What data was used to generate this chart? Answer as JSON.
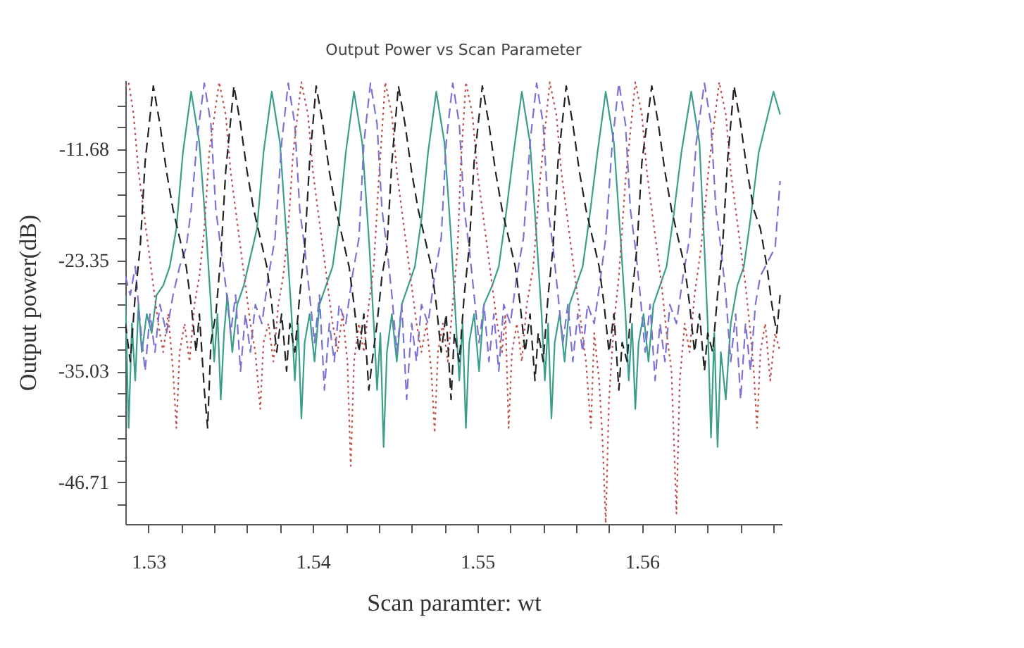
{
  "chart_data": {
    "type": "line",
    "title": "Output Power vs Scan Parameter",
    "xlabel": "Scan paramter:   wt",
    "ylabel": "Output power(dB)",
    "xlim": [
      1.5286,
      1.5685
    ],
    "ylim": [
      -51.1,
      -4.4
    ],
    "xticks": [
      {
        "value": 1.53,
        "label": "1.53"
      },
      {
        "value": 1.532,
        "label": null
      },
      {
        "value": 1.534,
        "label": null
      },
      {
        "value": 1.536,
        "label": null
      },
      {
        "value": 1.538,
        "label": null
      },
      {
        "value": 1.54,
        "label": "1.54"
      },
      {
        "value": 1.542,
        "label": null
      },
      {
        "value": 1.544,
        "label": null
      },
      {
        "value": 1.546,
        "label": null
      },
      {
        "value": 1.548,
        "label": null
      },
      {
        "value": 1.55,
        "label": "1.55"
      },
      {
        "value": 1.552,
        "label": null
      },
      {
        "value": 1.554,
        "label": null
      },
      {
        "value": 1.556,
        "label": null
      },
      {
        "value": 1.558,
        "label": null
      },
      {
        "value": 1.56,
        "label": "1.56"
      },
      {
        "value": 1.562,
        "label": null
      },
      {
        "value": 1.564,
        "label": null
      },
      {
        "value": 1.566,
        "label": null
      },
      {
        "value": 1.568,
        "label": null
      }
    ],
    "yticks": [
      {
        "value": -49.05,
        "label": null
      },
      -46.71,
      {
        "value": -44.38,
        "label": null
      },
      {
        "value": -42.04,
        "label": null
      },
      {
        "value": -39.7,
        "label": null
      },
      {
        "value": -37.37,
        "label": null
      },
      -35.03,
      {
        "value": -32.7,
        "label": null
      },
      {
        "value": -30.36,
        "label": null
      },
      {
        "value": -28.02,
        "label": null
      },
      {
        "value": -25.69,
        "label": null
      },
      -23.35,
      {
        "value": -21.02,
        "label": null
      },
      {
        "value": -18.68,
        "label": null
      },
      {
        "value": -16.35,
        "label": null
      },
      {
        "value": -14.01,
        "label": null
      },
      -11.68,
      {
        "value": -9.34,
        "label": null
      },
      {
        "value": -7.01,
        "label": null
      }
    ],
    "grid": false,
    "marker": "none",
    "series": [
      {
        "color": "#3a9e8a",
        "line_style": "solid",
        "x": [
          1.5286,
          1.5288,
          1.529,
          1.5292,
          1.5294,
          1.5296,
          1.5299,
          1.5302,
          1.5305,
          1.5309,
          1.5313,
          1.5317,
          1.5321,
          1.5326,
          1.5331,
          1.5335,
          1.5338,
          1.534,
          1.5342,
          1.5344,
          1.5346,
          1.5348,
          1.5351,
          1.5354,
          1.5358,
          1.5362,
          1.5366,
          1.537,
          1.5375,
          1.538,
          1.5384,
          1.5387,
          1.5389,
          1.5391,
          1.5393,
          1.5395,
          1.5398,
          1.5401,
          1.5404,
          1.5408,
          1.5412,
          1.5416,
          1.542,
          1.5425,
          1.543,
          1.5434,
          1.5437,
          1.5439,
          1.5441,
          1.5443,
          1.5445,
          1.5448,
          1.5451,
          1.5454,
          1.5458,
          1.5462,
          1.5466,
          1.547,
          1.5475,
          1.548,
          1.5484,
          1.5487,
          1.5489,
          1.5491,
          1.5493,
          1.5495,
          1.5498,
          1.5501,
          1.5504,
          1.5509,
          1.5513,
          1.5517,
          1.5522,
          1.5527,
          1.5532,
          1.5536,
          1.5539,
          1.5541,
          1.5543,
          1.5545,
          1.5547,
          1.555,
          1.5553,
          1.5556,
          1.556,
          1.5564,
          1.5568,
          1.5573,
          1.5578,
          1.5583,
          1.5587,
          1.559,
          1.5592,
          1.5594,
          1.5596,
          1.5598,
          1.5601,
          1.5604,
          1.5607,
          1.5611,
          1.5615,
          1.5619,
          1.5624,
          1.563,
          1.5635,
          1.5638,
          1.564,
          1.5642,
          1.5644,
          1.5646,
          1.5648,
          1.5651,
          1.5654,
          1.5658,
          1.5662,
          1.5666,
          1.5671,
          1.568,
          1.5684
        ],
        "values": [
          -27,
          -41,
          -30,
          -36,
          -28,
          -33,
          -29,
          -31,
          -27,
          -26,
          -24,
          -20,
          -12,
          -5.6,
          -11,
          -20,
          -28,
          -34,
          -29,
          -38,
          -31,
          -27,
          -33,
          -28,
          -26,
          -23,
          -20,
          -12,
          -5.6,
          -11,
          -21,
          -29,
          -36,
          -30,
          -40,
          -32,
          -29,
          -34,
          -28,
          -26,
          -24,
          -19,
          -12,
          -5.6,
          -11,
          -21,
          -30,
          -37,
          -31,
          -43,
          -33,
          -29,
          -34,
          -28,
          -26,
          -24,
          -19,
          -12,
          -5.6,
          -11,
          -21,
          -30,
          -36,
          -30,
          -41,
          -32,
          -29,
          -35,
          -28,
          -26,
          -24,
          -19,
          -12,
          -5.6,
          -11,
          -21,
          -29,
          -36,
          -30,
          -40,
          -32,
          -29,
          -34,
          -28,
          -26,
          -24,
          -19,
          -12,
          -5.6,
          -11,
          -21,
          -29,
          -36,
          -30,
          -39,
          -32,
          -29,
          -34,
          -28,
          -26,
          -24,
          -19,
          -12,
          -5.6,
          -11,
          -22,
          -30,
          -42,
          -31,
          -43,
          -33,
          -38,
          -30,
          -26,
          -24,
          -19,
          -12,
          -5.6,
          -8
        ]
      },
      {
        "color": "#7b72d6",
        "line_style": "dashed",
        "x": [
          1.5286,
          1.5289,
          1.5292,
          1.5295,
          1.5298,
          1.5301,
          1.5304,
          1.5307,
          1.5311,
          1.5315,
          1.5319,
          1.5323,
          1.5326,
          1.533,
          1.5334,
          1.5338,
          1.5341,
          1.5344,
          1.5347,
          1.535,
          1.5353,
          1.5356,
          1.5359,
          1.5362,
          1.5365,
          1.5369,
          1.5373,
          1.5377,
          1.5381,
          1.5385,
          1.5389,
          1.5392,
          1.5395,
          1.5398,
          1.5401,
          1.5404,
          1.5407,
          1.541,
          1.5413,
          1.5416,
          1.542,
          1.5424,
          1.5428,
          1.5431,
          1.5435,
          1.5439,
          1.5442,
          1.5445,
          1.5448,
          1.5451,
          1.5454,
          1.5457,
          1.546,
          1.5463,
          1.5466,
          1.547,
          1.5474,
          1.5478,
          1.5481,
          1.5485,
          1.5489,
          1.5492,
          1.5495,
          1.5498,
          1.5501,
          1.5504,
          1.5507,
          1.551,
          1.5513,
          1.5516,
          1.552,
          1.5524,
          1.5528,
          1.5532,
          1.5536,
          1.554,
          1.5543,
          1.5546,
          1.5549,
          1.5552,
          1.5555,
          1.5558,
          1.5561,
          1.5564,
          1.5567,
          1.5571,
          1.5575,
          1.5578,
          1.5582,
          1.5586,
          1.559,
          1.5593,
          1.5596,
          1.5599,
          1.5602,
          1.5605,
          1.5608,
          1.5611,
          1.5614,
          1.5617,
          1.5621,
          1.5625,
          1.5629,
          1.5633,
          1.5638,
          1.5642,
          1.5645,
          1.5648,
          1.5651,
          1.5654,
          1.5657,
          1.566,
          1.5663,
          1.5666,
          1.5669,
          1.5672,
          1.5675,
          1.5678,
          1.5681,
          1.5684
        ],
        "values": [
          -25,
          -27,
          -24,
          -30,
          -35,
          -29,
          -33,
          -28,
          -31,
          -27,
          -24,
          -22,
          -18,
          -10,
          -4.7,
          -9,
          -18,
          -22,
          -26,
          -31,
          -27,
          -35,
          -29,
          -33,
          -28,
          -30,
          -25,
          -21,
          -11,
          -4.7,
          -9,
          -18,
          -22,
          -27,
          -32,
          -27,
          -37,
          -30,
          -34,
          -28,
          -30,
          -25,
          -21,
          -11,
          -4.7,
          -9,
          -18,
          -22,
          -27,
          -33,
          -28,
          -38,
          -30,
          -34,
          -28,
          -30,
          -25,
          -21,
          -11,
          -4.7,
          -9,
          -18,
          -22,
          -27,
          -32,
          -28,
          -34,
          -29,
          -35,
          -28,
          -30,
          -25,
          -21,
          -11,
          -4.7,
          -9,
          -18,
          -22,
          -27,
          -32,
          -28,
          -34,
          -29,
          -33,
          -28,
          -30,
          -25,
          -21,
          -11,
          -4.7,
          -9,
          -18,
          -22,
          -27,
          -33,
          -28,
          -36,
          -30,
          -34,
          -28,
          -30,
          -25,
          -21,
          -11,
          -4.7,
          -9,
          -18,
          -22,
          -27,
          -34,
          -29,
          -38,
          -30,
          -35,
          -28,
          -25,
          -24,
          -23,
          -22,
          -15
        ]
      },
      {
        "color": "#c0504d",
        "line_style": "dotted",
        "x": [
          1.5286,
          1.5288,
          1.5291,
          1.5294,
          1.5297,
          1.53,
          1.5303,
          1.5306,
          1.5309,
          1.5312,
          1.5315,
          1.5317,
          1.5319,
          1.5322,
          1.5325,
          1.5328,
          1.5331,
          1.5334,
          1.5337,
          1.5343,
          1.5347,
          1.535,
          1.5353,
          1.5356,
          1.5359,
          1.5362,
          1.5365,
          1.5368,
          1.537,
          1.5373,
          1.5376,
          1.5379,
          1.5382,
          1.5385,
          1.5388,
          1.5393,
          1.5397,
          1.54,
          1.5403,
          1.5406,
          1.5409,
          1.5412,
          1.5415,
          1.5418,
          1.5421,
          1.5423,
          1.5425,
          1.5428,
          1.5431,
          1.5434,
          1.5437,
          1.544,
          1.5444,
          1.5448,
          1.5451,
          1.5454,
          1.5457,
          1.546,
          1.5463,
          1.5466,
          1.5469,
          1.5472,
          1.5474,
          1.5476,
          1.5479,
          1.5482,
          1.5485,
          1.5488,
          1.549,
          1.5493,
          1.5497,
          1.55,
          1.5503,
          1.5506,
          1.5509,
          1.5512,
          1.5515,
          1.5517,
          1.5519,
          1.5521,
          1.5524,
          1.5527,
          1.553,
          1.5534,
          1.5538,
          1.5544,
          1.5548,
          1.5551,
          1.5554,
          1.5557,
          1.556,
          1.5563,
          1.5566,
          1.5569,
          1.5571,
          1.5574,
          1.5576,
          1.5578,
          1.558,
          1.5583,
          1.5586,
          1.559,
          1.5596,
          1.56,
          1.5603,
          1.5606,
          1.5609,
          1.5612,
          1.5615,
          1.5618,
          1.5621,
          1.5623,
          1.5626,
          1.5629,
          1.5632,
          1.5636,
          1.5641,
          1.5647,
          1.5651,
          1.5654,
          1.5657,
          1.566,
          1.5663,
          1.5666,
          1.5668,
          1.567,
          1.5672,
          1.5675,
          1.5678,
          1.5681,
          1.5684
        ],
        "values": [
          -5,
          -4.6,
          -8,
          -14,
          -18,
          -22,
          -26,
          -30,
          -33,
          -29,
          -35,
          -41,
          -33,
          -30,
          -34,
          -28,
          -25,
          -20,
          -12,
          -4.6,
          -8,
          -14,
          -18,
          -22,
          -26,
          -30,
          -33,
          -39,
          -32,
          -30,
          -34,
          -28,
          -25,
          -20,
          -12,
          -4.6,
          -8,
          -14,
          -18,
          -22,
          -26,
          -30,
          -33,
          -29,
          -34,
          -45,
          -34,
          -30,
          -33,
          -28,
          -24,
          -15,
          -4.6,
          -8,
          -14,
          -18,
          -22,
          -26,
          -30,
          -33,
          -30,
          -35,
          -41.5,
          -33,
          -30,
          -34,
          -28,
          -22,
          -13,
          -4.6,
          -8,
          -14,
          -18,
          -22,
          -26,
          -30,
          -33,
          -29,
          -41,
          -33,
          -30,
          -34,
          -28,
          -24,
          -15,
          -4.6,
          -8,
          -14,
          -18,
          -22,
          -26,
          -30,
          -34,
          -41,
          -31,
          -36,
          -42,
          -51,
          -38,
          -30,
          -25,
          -15,
          -4.6,
          -8,
          -14,
          -18,
          -22,
          -26,
          -31,
          -35,
          -50,
          -36,
          -30,
          -33,
          -27,
          -22,
          -13,
          -4.6,
          -8,
          -14,
          -18,
          -22,
          -26,
          -31,
          -35,
          -41,
          -33,
          -30,
          -36,
          -31,
          -33
        ]
      },
      {
        "color": "#222222",
        "line_style": "dashed",
        "x": [
          1.5286,
          1.5289,
          1.5292,
          1.5295,
          1.5298,
          1.5303,
          1.5307,
          1.5311,
          1.5315,
          1.5319,
          1.5323,
          1.5326,
          1.5329,
          1.5331,
          1.5334,
          1.5336,
          1.5338,
          1.5341,
          1.5344,
          1.5347,
          1.5352,
          1.5356,
          1.536,
          1.5364,
          1.5368,
          1.5372,
          1.5375,
          1.5378,
          1.5381,
          1.5384,
          1.5386,
          1.5389,
          1.5392,
          1.5395,
          1.5398,
          1.5402,
          1.5406,
          1.541,
          1.5414,
          1.5418,
          1.5422,
          1.5425,
          1.5428,
          1.5431,
          1.5434,
          1.5436,
          1.5439,
          1.5442,
          1.5445,
          1.5448,
          1.5452,
          1.5456,
          1.546,
          1.5464,
          1.5468,
          1.5472,
          1.5475,
          1.5478,
          1.5481,
          1.5484,
          1.5486,
          1.5489,
          1.5492,
          1.5495,
          1.5498,
          1.5503,
          1.5507,
          1.5511,
          1.5515,
          1.5519,
          1.5523,
          1.5526,
          1.5529,
          1.5532,
          1.5535,
          1.5537,
          1.554,
          1.5543,
          1.5546,
          1.5549,
          1.5554,
          1.5558,
          1.5562,
          1.5566,
          1.557,
          1.5574,
          1.5577,
          1.558,
          1.5583,
          1.5586,
          1.5588,
          1.5591,
          1.5594,
          1.5597,
          1.56,
          1.5606,
          1.561,
          1.5614,
          1.5618,
          1.5622,
          1.5626,
          1.5629,
          1.5632,
          1.5635,
          1.5638,
          1.564,
          1.5643,
          1.5646,
          1.5649,
          1.5652,
          1.5656,
          1.566,
          1.5664,
          1.5668,
          1.5672,
          1.5676,
          1.5679,
          1.5682,
          1.5684
        ],
        "values": [
          -30,
          -34,
          -27,
          -22,
          -13,
          -5,
          -9,
          -14,
          -18,
          -21,
          -24,
          -28,
          -33,
          -29,
          -37,
          -41,
          -32,
          -29,
          -23,
          -14,
          -5,
          -9,
          -14,
          -18,
          -21,
          -24,
          -28,
          -33,
          -29,
          -35,
          -30,
          -33,
          -27,
          -22,
          -13,
          -5,
          -9,
          -14,
          -18,
          -21,
          -24,
          -28,
          -33,
          -29,
          -37,
          -34,
          -30,
          -25,
          -22,
          -13,
          -5,
          -9,
          -14,
          -18,
          -21,
          -24,
          -28,
          -33,
          -29,
          -38,
          -31,
          -34,
          -27,
          -22,
          -13,
          -5,
          -9,
          -14,
          -18,
          -21,
          -24,
          -28,
          -33,
          -29,
          -36,
          -31,
          -34,
          -27,
          -22,
          -13,
          -5,
          -9,
          -14,
          -18,
          -21,
          -24,
          -28,
          -33,
          -29,
          -37,
          -32,
          -34,
          -27,
          -22,
          -13,
          -5,
          -9,
          -14,
          -18,
          -21,
          -24,
          -28,
          -33,
          -29,
          -35,
          -31,
          -33,
          -27,
          -22,
          -13,
          -5,
          -9,
          -14,
          -18,
          -20,
          -24,
          -28,
          -31,
          -27
        ]
      }
    ]
  }
}
